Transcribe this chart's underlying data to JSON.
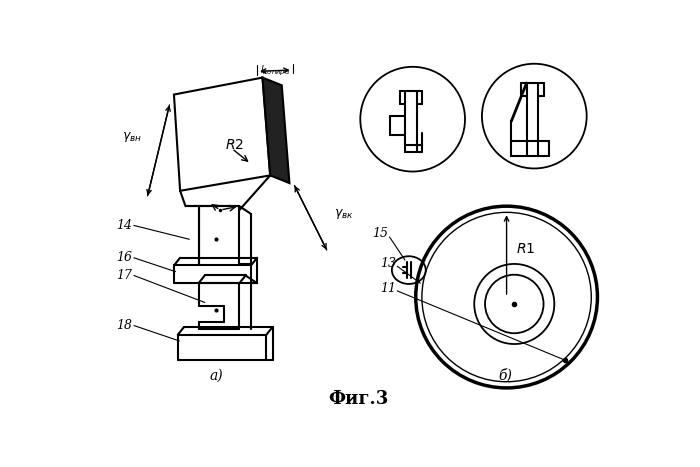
{
  "title": "Фиг.3",
  "bg_color": "#ffffff",
  "line_color": "#000000",
  "label_a": "а)",
  "label_b": "б)"
}
